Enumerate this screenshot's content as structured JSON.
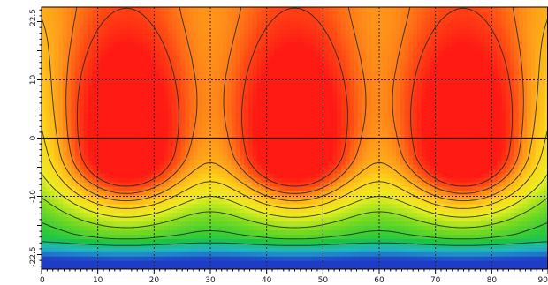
{
  "chart_data": {
    "type": "heatmap",
    "title": "",
    "xlabel": "",
    "ylabel": "",
    "xlim": [
      0,
      90
    ],
    "ylim": [
      -22.5,
      22.5
    ],
    "x_ticks": [
      "0",
      "10",
      "20",
      "30",
      "40",
      "50",
      "60",
      "70",
      "80",
      "90"
    ],
    "x_tick_values": [
      0,
      10,
      20,
      30,
      40,
      50,
      60,
      70,
      80,
      90
    ],
    "y_ticks": [
      "22.5",
      "10",
      "0",
      "-10",
      "-22.5"
    ],
    "y_tick_values": [
      22.5,
      10,
      0,
      -10,
      -22.5
    ],
    "grid": true,
    "colormap": [
      "#1f3cc8",
      "#21b6c9",
      "#19c442",
      "#7fdc1f",
      "#e8ee22",
      "#ffd21a",
      "#ff9a1a",
      "#ff4a14",
      "#ff1a14"
    ],
    "hotspots": [
      {
        "x": 15,
        "y": -2.5,
        "value": 1.0
      },
      {
        "x": 45,
        "y": -2.5,
        "value": 1.0
      },
      {
        "x": 75,
        "y": -2.5,
        "value": 1.0
      }
    ],
    "contour_levels": [
      0.2,
      0.3,
      0.4,
      0.5,
      0.6,
      0.7,
      0.8,
      0.9
    ]
  }
}
